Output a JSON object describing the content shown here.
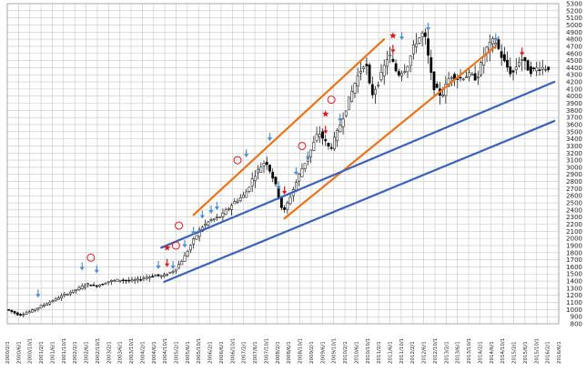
{
  "chart_data": {
    "type": "candlestick",
    "title": "",
    "ylim": [
      800,
      5300
    ],
    "y_ticks": [
      800,
      900,
      1000,
      1100,
      1200,
      1300,
      1400,
      1500,
      1600,
      1700,
      1800,
      1900,
      2000,
      2100,
      2200,
      2300,
      2400,
      2500,
      2600,
      2700,
      2800,
      2900,
      3000,
      3100,
      3200,
      3300,
      3400,
      3500,
      3600,
      3700,
      3800,
      3900,
      4000,
      4100,
      4200,
      4300,
      4400,
      4500,
      4600,
      4700,
      4800,
      4900,
      5000,
      5100,
      5200,
      5300
    ],
    "x_tick_labels": [
      "2000/2/1",
      "2000/6/1",
      "2000/10/1",
      "2001/2/1",
      "2001/6/1",
      "2001/10/1",
      "2002/2/1",
      "2002/6/1",
      "2002/10/1",
      "2003/2/1",
      "2003/6/1",
      "2003/10/1",
      "2004/2/1",
      "2004/6/1",
      "2004/10/1",
      "2005/2/1",
      "2005/6/1",
      "2005/10/1",
      "2006/2/1",
      "2006/6/1",
      "2006/10/1",
      "2007/2/1",
      "2007/6/1",
      "2007/10/1",
      "2008/2/1",
      "2008/6/1",
      "2008/10/1",
      "2009/2/1",
      "2009/6/1",
      "2009/10/1",
      "2010/2/1",
      "2010/6/1",
      "2010/10/1",
      "2011/2/1",
      "2011/6/1",
      "2011/10/1",
      "2012/2/1",
      "2012/6/1",
      "2012/10/1",
      "2013/2/1",
      "2013/6/1",
      "2013/10/1",
      "2014/2/1",
      "2014/6/1",
      "2014/10/1",
      "2015/2/1",
      "2015/6/1",
      "2015/10/1",
      "2016/2/1",
      "2016/6/1"
    ],
    "anchors": [
      [
        0,
        1000
      ],
      [
        4,
        920
      ],
      [
        8,
        980
      ],
      [
        12,
        1060
      ],
      [
        16,
        1140
      ],
      [
        20,
        1220
      ],
      [
        24,
        1290
      ],
      [
        27,
        1360
      ],
      [
        30,
        1330
      ],
      [
        34,
        1390
      ],
      [
        38,
        1420
      ],
      [
        42,
        1400
      ],
      [
        46,
        1440
      ],
      [
        50,
        1480
      ],
      [
        53,
        1470
      ],
      [
        57,
        1560
      ],
      [
        60,
        1720
      ],
      [
        63,
        1950
      ],
      [
        66,
        2150
      ],
      [
        69,
        2250
      ],
      [
        73,
        2320
      ],
      [
        77,
        2500
      ],
      [
        81,
        2620
      ],
      [
        84,
        2880
      ],
      [
        88,
        3100
      ],
      [
        91,
        2800
      ],
      [
        94,
        2350
      ],
      [
        97,
        2650
      ],
      [
        100,
        2950
      ],
      [
        103,
        3200
      ],
      [
        106,
        3500
      ],
      [
        110,
        3250
      ],
      [
        113,
        3550
      ],
      [
        116,
        3900
      ],
      [
        119,
        4250
      ],
      [
        122,
        4500
      ],
      [
        124,
        4000
      ],
      [
        127,
        4250
      ],
      [
        130,
        4600
      ],
      [
        133,
        4300
      ],
      [
        136,
        4400
      ],
      [
        139,
        4750
      ],
      [
        142,
        4900
      ],
      [
        145,
        4150
      ],
      [
        148,
        4000
      ],
      [
        151,
        4300
      ],
      [
        154,
        4250
      ],
      [
        157,
        4300
      ],
      [
        160,
        4250
      ],
      [
        163,
        4650
      ],
      [
        166,
        4800
      ],
      [
        169,
        4500
      ],
      [
        172,
        4300
      ],
      [
        175,
        4550
      ],
      [
        178,
        4350
      ],
      [
        181,
        4400
      ],
      [
        184,
        4400
      ]
    ],
    "trendlines": [
      {
        "color": "#e8731a",
        "points": [
          [
            63,
            2330
          ],
          [
            128,
            4800
          ]
        ]
      },
      {
        "color": "#e8731a",
        "points": [
          [
            94,
            2280
          ],
          [
            166,
            4700
          ]
        ]
      },
      {
        "color": "#3a62b8",
        "points": [
          [
            52,
            1870
          ],
          [
            186,
            4200
          ]
        ]
      },
      {
        "color": "#3a62b8",
        "points": [
          [
            53,
            1390
          ],
          [
            186,
            3650
          ]
        ]
      }
    ],
    "markers": [
      {
        "kind": "circle",
        "x": 28,
        "y": 1730
      },
      {
        "kind": "circle",
        "x": 57,
        "y": 1900
      },
      {
        "kind": "circle",
        "x": 58,
        "y": 2180
      },
      {
        "kind": "circle",
        "x": 78,
        "y": 3100
      },
      {
        "kind": "circle",
        "x": 100,
        "y": 3300
      },
      {
        "kind": "circle",
        "x": 110,
        "y": 3950
      },
      {
        "kind": "star",
        "x": 54,
        "y": 1870
      },
      {
        "kind": "star",
        "x": 108,
        "y": 3750
      },
      {
        "kind": "star",
        "x": 131,
        "y": 4850
      },
      {
        "kind": "down-red",
        "x": 54,
        "y": 1610
      },
      {
        "kind": "down-red",
        "x": 94,
        "y": 2630
      },
      {
        "kind": "down-red",
        "x": 108,
        "y": 3480
      },
      {
        "kind": "down-red",
        "x": 131,
        "y": 4620
      },
      {
        "kind": "down-red",
        "x": 175,
        "y": 4580
      },
      {
        "kind": "down-blue",
        "x": 10,
        "y": 1180
      },
      {
        "kind": "down-blue",
        "x": 25,
        "y": 1560
      },
      {
        "kind": "down-blue",
        "x": 30,
        "y": 1520
      },
      {
        "kind": "down-blue",
        "x": 51,
        "y": 1580
      },
      {
        "kind": "down-blue",
        "x": 56,
        "y": 1580
      },
      {
        "kind": "down-blue",
        "x": 60,
        "y": 1880
      },
      {
        "kind": "down-blue",
        "x": 63,
        "y": 2060
      },
      {
        "kind": "down-blue",
        "x": 66,
        "y": 2290
      },
      {
        "kind": "down-blue",
        "x": 69,
        "y": 2360
      },
      {
        "kind": "down-blue",
        "x": 71,
        "y": 2410
      },
      {
        "kind": "down-blue",
        "x": 81,
        "y": 3150
      },
      {
        "kind": "down-blue",
        "x": 89,
        "y": 3380
      },
      {
        "kind": "down-blue",
        "x": 92,
        "y": 2700
      },
      {
        "kind": "down-blue",
        "x": 98,
        "y": 2900
      },
      {
        "kind": "down-blue",
        "x": 102,
        "y": 3120
      },
      {
        "kind": "down-blue",
        "x": 113,
        "y": 3650
      },
      {
        "kind": "down-blue",
        "x": 134,
        "y": 4800
      },
      {
        "kind": "down-blue",
        "x": 143,
        "y": 4930
      },
      {
        "kind": "down-blue",
        "x": 166,
        "y": 4780
      }
    ],
    "colors": {
      "grid": "#c6c6c6",
      "candle_up": "#ffffff",
      "candle_down": "#000000",
      "orange_line": "#e8731a",
      "blue_line": "#3a62b8",
      "red_marker": "#e01818",
      "blue_marker": "#4f8ed2"
    }
  }
}
